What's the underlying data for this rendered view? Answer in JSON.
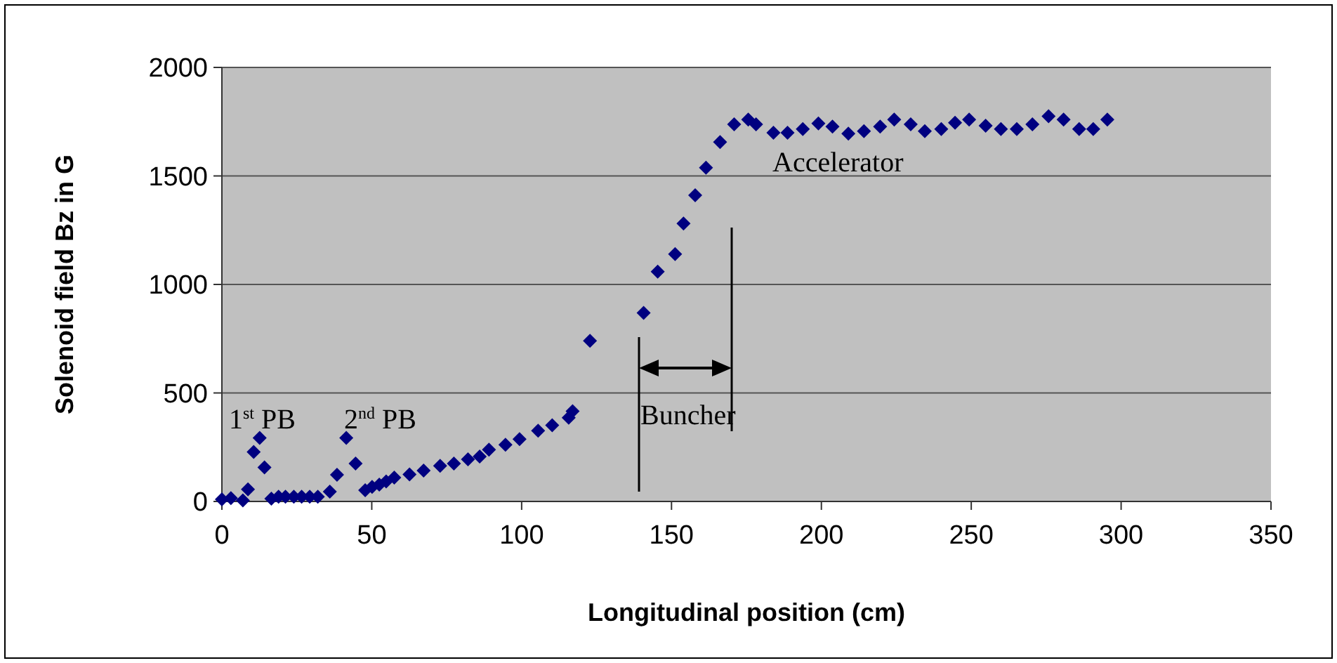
{
  "chart_data": {
    "type": "scatter",
    "xlabel": "Longitudinal position (cm)",
    "ylabel": "Solenoid field Bz in G",
    "x": [
      0,
      3,
      7,
      8.7,
      10.6,
      12.6,
      14.2,
      16.5,
      18.9,
      21.2,
      24,
      26.6,
      29.3,
      32,
      36,
      38.4,
      41.5,
      44.6,
      47.8,
      50.1,
      52.5,
      54.8,
      57.5,
      62.6,
      67.3,
      72.8,
      77.4,
      82.1,
      86,
      89.1,
      94.6,
      99.3,
      105.5,
      110.2,
      115.7,
      117,
      122.8,
      140.7,
      145.4,
      151.2,
      154,
      157.9,
      161.5,
      166.2,
      170.9,
      175.6,
      178.2,
      184,
      188.7,
      193.8,
      199,
      203.7,
      209,
      214.2,
      219.6,
      224.3,
      229.8,
      234.5,
      240,
      244.6,
      249.3,
      254.8,
      259.9,
      265.2,
      270.4,
      275.8,
      280.8,
      286,
      290.7,
      295.4
    ],
    "values": [
      10,
      15,
      5,
      56,
      228,
      293,
      157,
      13,
      22,
      22,
      22,
      22,
      22,
      22,
      45,
      123,
      293,
      175,
      52,
      67,
      78,
      92,
      110,
      125,
      142,
      164,
      175,
      194,
      207,
      239,
      261,
      287,
      326,
      351,
      386,
      416,
      740,
      869,
      1059,
      1140,
      1281,
      1411,
      1538,
      1656,
      1738,
      1760,
      1738,
      1699,
      1699,
      1716,
      1742,
      1727,
      1695,
      1706,
      1727,
      1760,
      1738,
      1706,
      1716,
      1745,
      1760,
      1731,
      1716,
      1716,
      1738,
      1775,
      1760,
      1716,
      1716,
      1760
    ],
    "color": "#000080",
    "marker": "diamond",
    "grid": "y",
    "xlim": [
      0,
      350
    ],
    "xticks": [
      0,
      50,
      100,
      150,
      200,
      250,
      300,
      350
    ],
    "ylim": [
      0,
      2000
    ],
    "yticks": [
      0,
      500,
      1000,
      1500,
      2000
    ],
    "annotations": [
      "1$^{st}$ PB",
      "2$^{nd}$ PB",
      "Buncher",
      "Accelerator"
    ]
  }
}
